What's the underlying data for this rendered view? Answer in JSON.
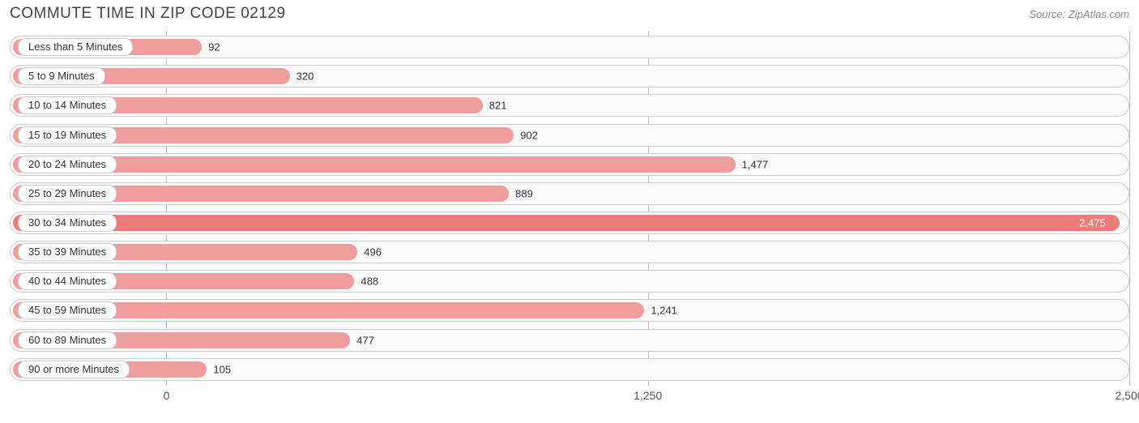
{
  "chart": {
    "type": "bar-horizontal",
    "title": "COMMUTE TIME IN ZIP CODE 02129",
    "source": "Source: ZipAtlas.com",
    "title_color": "#444444",
    "title_fontsize": 19,
    "source_color": "#888888",
    "source_fontsize": 13,
    "background_color": "#ffffff",
    "track_border_color": "#cccccc",
    "track_background": "#fafafa",
    "bar_color": "#f09d9d",
    "bar_color_max": "#ec7c78",
    "grid_color": "#bbbbbb",
    "label_fontsize": 13,
    "value_fontsize": 13,
    "value_color": "#333333",
    "value_color_inside": "#ffffff",
    "bar_radius": 10,
    "track_radius": 14,
    "bar_inset": 4,
    "plot_left_pct": 0,
    "zero_offset_pct": 14.0,
    "x_axis": {
      "min": 0,
      "max": 2500,
      "ticks": [
        {
          "value": 0,
          "label": "0"
        },
        {
          "value": 1250,
          "label": "1,250"
        },
        {
          "value": 2500,
          "label": "2,500"
        }
      ],
      "tick_fontsize": 14,
      "tick_color": "#555555"
    },
    "categories": [
      {
        "label": "Less than 5 Minutes",
        "value": 92,
        "display": "92"
      },
      {
        "label": "5 to 9 Minutes",
        "value": 320,
        "display": "320"
      },
      {
        "label": "10 to 14 Minutes",
        "value": 821,
        "display": "821"
      },
      {
        "label": "15 to 19 Minutes",
        "value": 902,
        "display": "902"
      },
      {
        "label": "20 to 24 Minutes",
        "value": 1477,
        "display": "1,477"
      },
      {
        "label": "25 to 29 Minutes",
        "value": 889,
        "display": "889"
      },
      {
        "label": "30 to 34 Minutes",
        "value": 2475,
        "display": "2,475"
      },
      {
        "label": "35 to 39 Minutes",
        "value": 496,
        "display": "496"
      },
      {
        "label": "40 to 44 Minutes",
        "value": 488,
        "display": "488"
      },
      {
        "label": "45 to 59 Minutes",
        "value": 1241,
        "display": "1,241"
      },
      {
        "label": "60 to 89 Minutes",
        "value": 477,
        "display": "477"
      },
      {
        "label": "90 or more Minutes",
        "value": 105,
        "display": "105"
      }
    ]
  }
}
